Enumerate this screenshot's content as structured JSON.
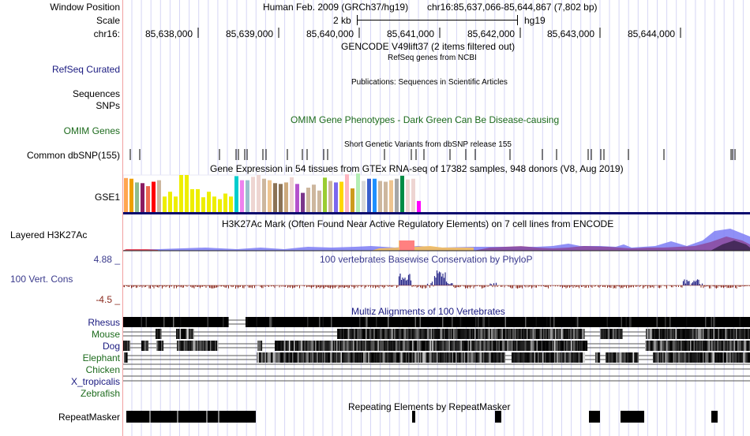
{
  "header": {
    "window_position_label": "Window Position",
    "scale_label": "Scale",
    "chrom_label": "chr16:",
    "assembly": "Human Feb. 2009 (GRCh37/hg19)",
    "position": "chr16:85,637,066-85,644,867 (7,802 bp)",
    "scale_value": "2 kb",
    "scale_db": "hg19",
    "ruler_ticks": [
      "85,638,000",
      "85,639,000",
      "85,640,000",
      "85,641,000",
      "85,642,000",
      "85,643,000",
      "85,644,000"
    ]
  },
  "tracks": {
    "gencode": {
      "title": "GENCODE V49lift37 (2 items filtered out)"
    },
    "refseq": {
      "label": "RefSeq Curated",
      "title": "RefSeq genes from NCBI"
    },
    "publications": {
      "label_1": "Sequences",
      "title": "Publications: Sequences in Scientific Articles"
    },
    "snps_pub": {
      "label": "SNPs"
    },
    "omim": {
      "label": "OMIM Genes",
      "title": "OMIM Gene Phenotypes - Dark Green Can Be Disease-causing"
    },
    "dbsnp": {
      "label": "Common dbSNP(155)",
      "title": "Short Genetic Variants from dbSNP release 155"
    },
    "gtex": {
      "label": "GSE1",
      "title": "Gene Expression in 54 tissues from GTEx RNA-seq of 17382 samples, 948 donors (V8, Aug 2019)",
      "bars": [
        {
          "color": "#ffa54f",
          "v": 0.92
        },
        {
          "color": "#eea000",
          "v": 0.9
        },
        {
          "color": "#8fbc8f",
          "v": 0.8
        },
        {
          "color": "#8b1c62",
          "v": 0.78
        },
        {
          "color": "#ee6a50",
          "v": 0.7
        },
        {
          "color": "#ff0000",
          "v": 0.82
        },
        {
          "color": "#cdb79e",
          "v": 0.86
        },
        {
          "color": "#eeee00",
          "v": 0.42
        },
        {
          "color": "#eeee00",
          "v": 0.55
        },
        {
          "color": "#eeee00",
          "v": 0.42
        },
        {
          "color": "#eeee00",
          "v": 1.0
        },
        {
          "color": "#eeee00",
          "v": 1.0
        },
        {
          "color": "#eeee00",
          "v": 0.62
        },
        {
          "color": "#eeee00",
          "v": 0.62
        },
        {
          "color": "#eeee00",
          "v": 0.4
        },
        {
          "color": "#eeee00",
          "v": 0.55
        },
        {
          "color": "#eeee00",
          "v": 0.42
        },
        {
          "color": "#eeee00",
          "v": 0.35
        },
        {
          "color": "#eeee00",
          "v": 0.5
        },
        {
          "color": "#eeee00",
          "v": 0.42
        },
        {
          "color": "#00cdcd",
          "v": 0.97
        },
        {
          "color": "#ee82ee",
          "v": 0.86
        },
        {
          "color": "#9ac0cd",
          "v": 0.86
        },
        {
          "color": "#eed5d2",
          "v": 0.95
        },
        {
          "color": "#eed5d2",
          "v": 1.0
        },
        {
          "color": "#cdb79e",
          "v": 0.9
        },
        {
          "color": "#eec591",
          "v": 0.86
        },
        {
          "color": "#8b7355",
          "v": 0.78
        },
        {
          "color": "#8b7355",
          "v": 0.76
        },
        {
          "color": "#cdaa7d",
          "v": 0.8
        },
        {
          "color": "#eed5d2",
          "v": 0.94
        },
        {
          "color": "#b452cd",
          "v": 0.76
        },
        {
          "color": "#7a378b",
          "v": 0.52
        },
        {
          "color": "#cdb79e",
          "v": 0.66
        },
        {
          "color": "#cdb79e",
          "v": 0.74
        },
        {
          "color": "#cdb79e",
          "v": 0.58
        },
        {
          "color": "#9acd32",
          "v": 0.93
        },
        {
          "color": "#cdb79e",
          "v": 0.84
        },
        {
          "color": "#7b68ee",
          "v": 0.8
        },
        {
          "color": "#ffd700",
          "v": 0.82
        },
        {
          "color": "#ffb6c1",
          "v": 1.02
        },
        {
          "color": "#cd9b1d",
          "v": 0.64
        },
        {
          "color": "#b4eeb4",
          "v": 1.04
        },
        {
          "color": "#d9d9d9",
          "v": 0.84
        },
        {
          "color": "#3a5fcd",
          "v": 0.9
        },
        {
          "color": "#1e90ff",
          "v": 0.9
        },
        {
          "color": "#cdb79e",
          "v": 0.84
        },
        {
          "color": "#cdb79e",
          "v": 0.82
        },
        {
          "color": "#eec591",
          "v": 0.86
        },
        {
          "color": "#a6a6a6",
          "v": 0.9
        },
        {
          "color": "#008b45",
          "v": 0.98
        },
        {
          "color": "#eed5d2",
          "v": 0.88
        },
        {
          "color": "#eed5d2",
          "v": 0.9
        },
        {
          "color": "#ff00ff",
          "v": 0.3
        }
      ]
    },
    "h3k27ac": {
      "label": "Layered H3K27Ac",
      "title": "H3K27Ac Mark (Often Found Near Active Regulatory Elements) on 7 cell lines from ENCODE"
    },
    "conservation": {
      "label": "100 Vert. Cons",
      "max": "4.88 _",
      "min": "-4.5 _",
      "title": "100 vertebrates Basewise Conservation by PhyloP"
    },
    "multiz": {
      "title": "Multiz Alignments of 100 Vertebrates",
      "species": [
        {
          "name": "Rhesus",
          "color": "#1a1a80"
        },
        {
          "name": "Mouse",
          "color": "#1d6b1d"
        },
        {
          "name": "Dog",
          "color": "#1a1a80"
        },
        {
          "name": "Elephant",
          "color": "#1d6b1d"
        },
        {
          "name": "Chicken",
          "color": "#1d6b1d"
        },
        {
          "name": "X_tropicalis",
          "color": "#1a1a80"
        },
        {
          "name": "Zebrafish",
          "color": "#1d6b1d"
        }
      ]
    },
    "repeatmasker": {
      "label": "RepeatMasker",
      "title": "Repeating Elements by RepeatMasker"
    }
  }
}
